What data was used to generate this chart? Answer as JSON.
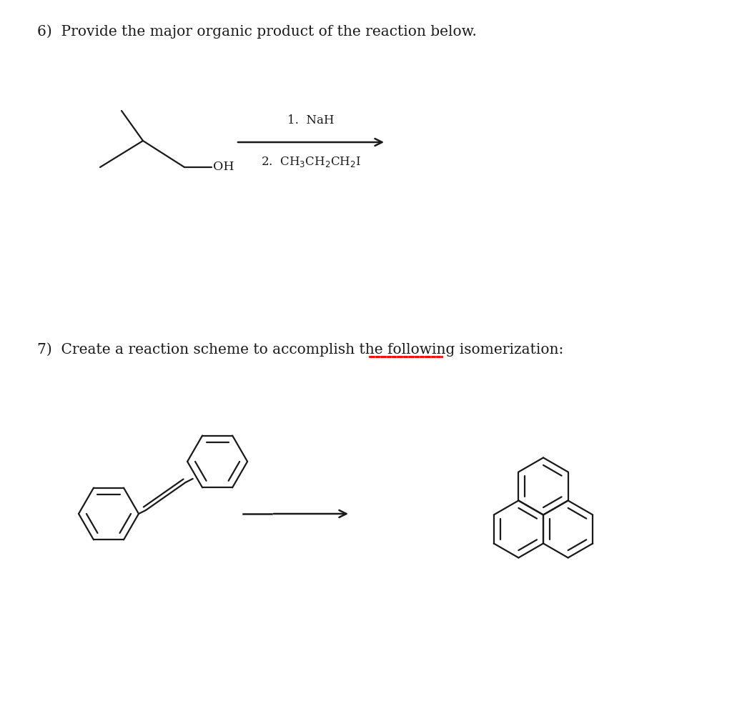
{
  "background_color": "#ffffff",
  "q6_label": "6)  Provide the major organic product of the reaction below.",
  "q7_label": "7)  Create a reaction scheme to accomplish the following isomerization:",
  "label_fontsize": 14.5,
  "mol_lw": 1.6,
  "text_color": "#1a1a1a",
  "arrow_color": "#1a1a1a",
  "reagent1": "1.  NaH",
  "reagent2": "2.  CH$_3$CH$_2$CH$_2$I"
}
